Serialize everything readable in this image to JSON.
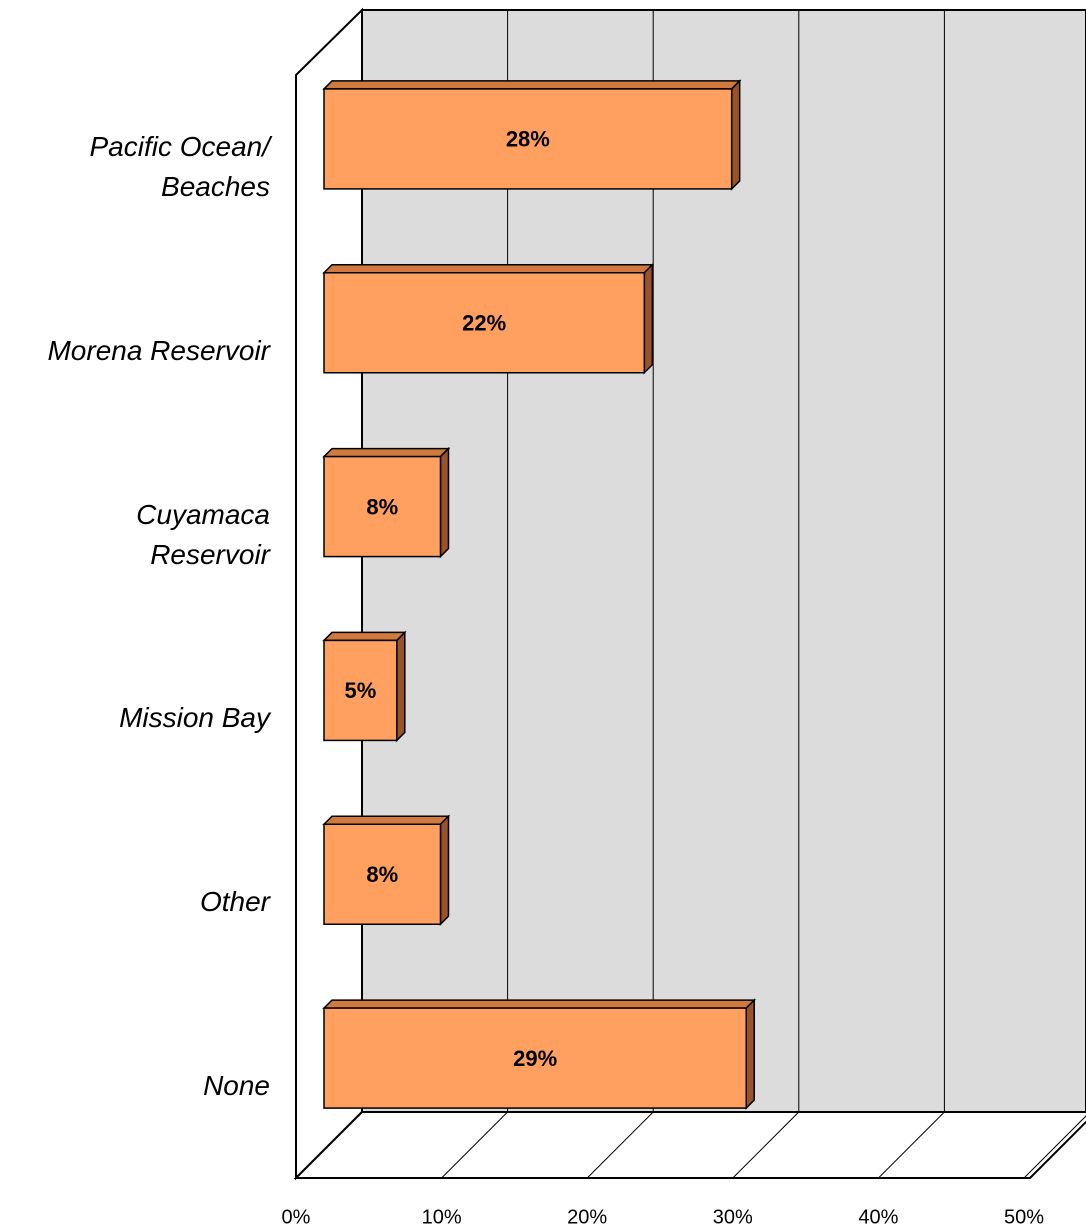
{
  "chart_data": {
    "type": "bar",
    "orientation": "horizontal",
    "categories": [
      "Pacific Ocean/\nBeaches",
      "Morena Reservoir",
      "Cuyamaca\nReservoir",
      "Mission Bay",
      "Other",
      "None"
    ],
    "values": [
      28,
      22,
      8,
      5,
      8,
      29
    ],
    "value_labels": [
      "28%",
      "22%",
      "8%",
      "5%",
      "8%",
      "29%"
    ],
    "color": "#ffa060",
    "xlim": [
      0,
      50
    ],
    "xticks": [
      {
        "value": 0,
        "label": "0%"
      },
      {
        "value": 10,
        "label": "10%"
      },
      {
        "value": 20,
        "label": "20%"
      },
      {
        "value": 30,
        "label": "30%"
      },
      {
        "value": 40,
        "label": "40%"
      },
      {
        "value": 50,
        "label": "50%"
      }
    ],
    "grid": true
  }
}
